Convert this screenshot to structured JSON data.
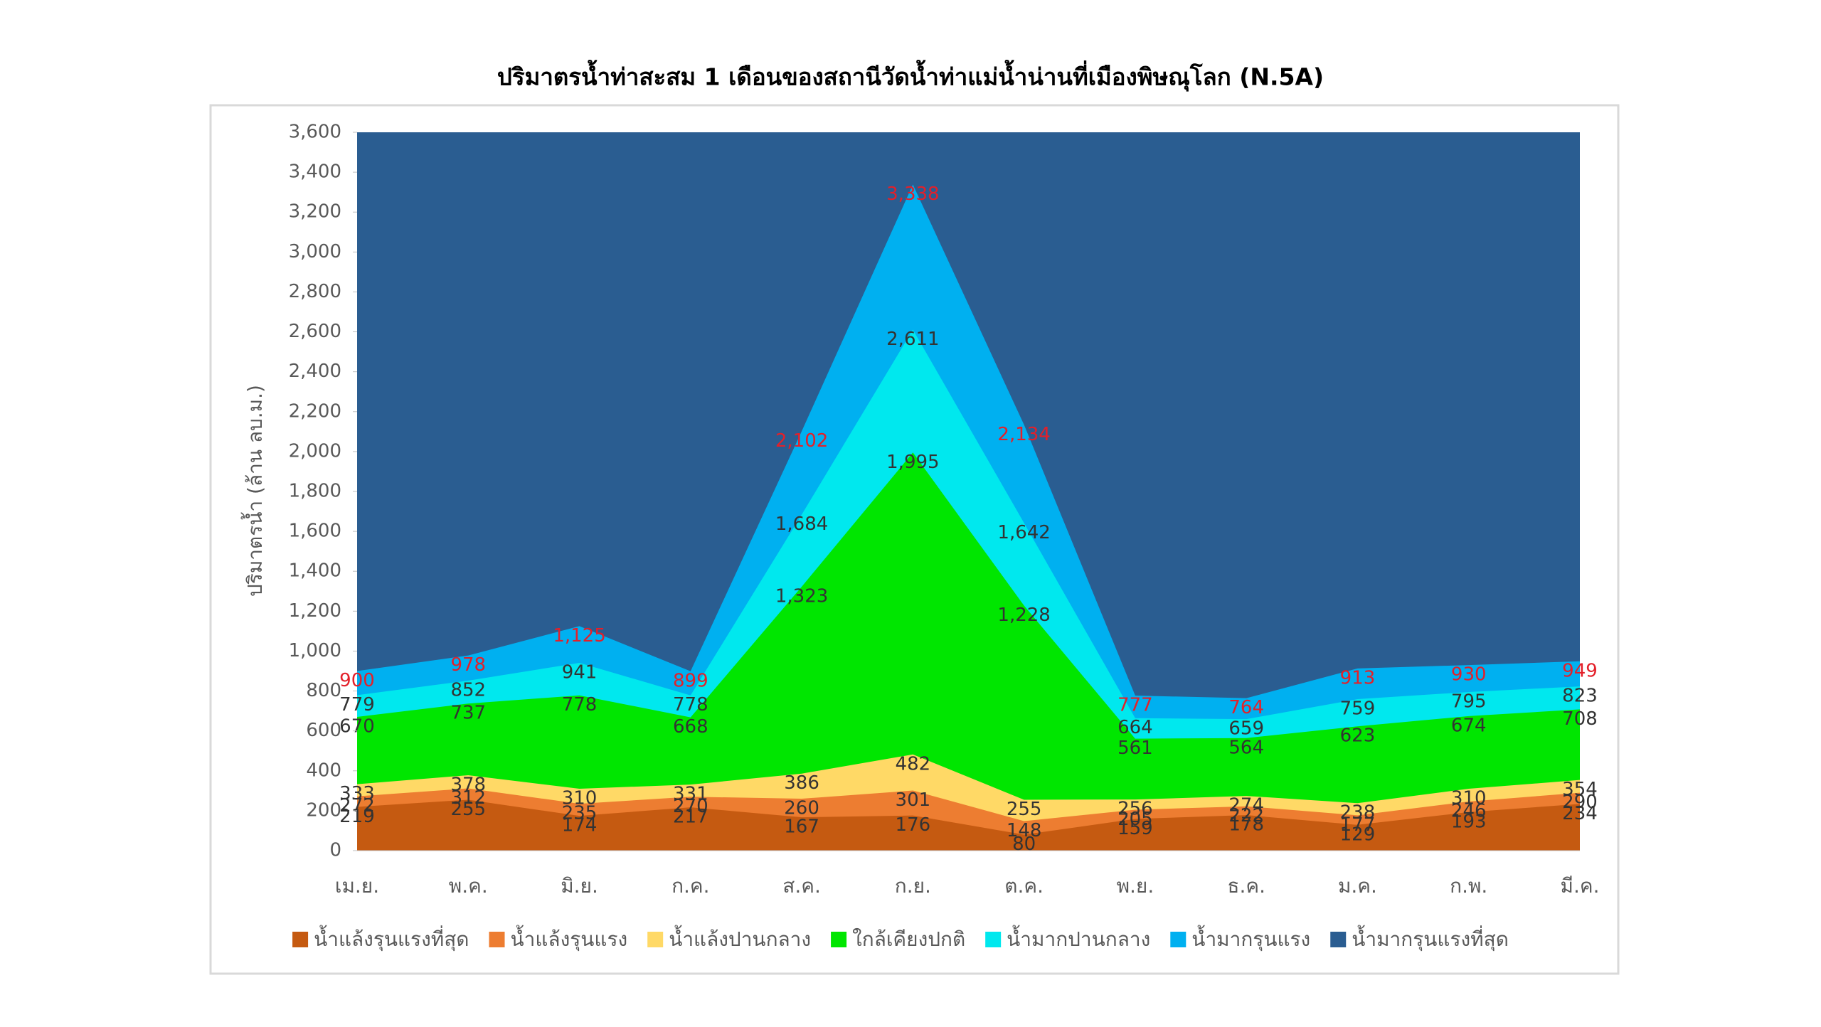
{
  "chart_data": {
    "type": "area",
    "stacking": "overlap",
    "title": "ปริมาตรน้ำท่าสะสม 1 เดือนของสถานีวัดน้ำท่าแม่น้ำน่านที่เมืองพิษณุโลก (N.5A)",
    "y_label": "ปริมาตรน้ำ (ล้าน ลบ.ม.)",
    "categories": [
      "เม.ย.",
      "พ.ค.",
      "มิ.ย.",
      "ก.ค.",
      "ส.ค.",
      "ก.ย.",
      "ต.ค.",
      "พ.ย.",
      "ธ.ค.",
      "ม.ค.",
      "ก.พ.",
      "มี.ค."
    ],
    "ylim": [
      0,
      3600
    ],
    "yticks": [
      0,
      200,
      400,
      600,
      800,
      {
        "value": 1000,
        "label": "1,000"
      },
      {
        "value": 1200,
        "label": "1,200"
      },
      {
        "value": 1400,
        "label": "1,400"
      },
      {
        "value": 1600,
        "label": "1,600"
      },
      {
        "value": 1800,
        "label": "1,800"
      },
      {
        "value": 2000,
        "label": "2,000"
      },
      {
        "value": 2200,
        "label": "2,200"
      },
      {
        "value": 2400,
        "label": "2,400"
      },
      {
        "value": 2600,
        "label": "2,600"
      },
      {
        "value": 2800,
        "label": "2,800"
      },
      {
        "value": 3000,
        "label": "3,000"
      },
      {
        "value": 3200,
        "label": "3,200"
      },
      {
        "value": 3400,
        "label": "3,400"
      },
      {
        "value": 3600,
        "label": "3,600"
      }
    ],
    "legend": "bottom",
    "series": [
      {
        "name": "น้ำแล้งรุนแรงที่สุด",
        "color": "#c55a11",
        "label_color": "#333333",
        "values": [
          219,
          255,
          174,
          217,
          167,
          176,
          80,
          159,
          178,
          129,
          193,
          234
        ]
      },
      {
        "name": "น้ำแล้งรุนแรง",
        "color": "#ed7d31",
        "label_color": "#333333",
        "values": [
          272,
          312,
          235,
          270,
          260,
          301,
          148,
          205,
          222,
          177,
          246,
          290
        ]
      },
      {
        "name": "น้ำแล้งปานกลาง",
        "color": "#ffd966",
        "label_color": "#333333",
        "values": [
          333,
          378,
          310,
          331,
          386,
          482,
          255,
          256,
          274,
          238,
          310,
          354
        ]
      },
      {
        "name": "ใกล้เคียงปกติ",
        "color": "#00e600",
        "label_color": "#333333",
        "values": [
          670,
          737,
          778,
          668,
          1323,
          1995,
          1228,
          561,
          564,
          623,
          674,
          708
        ],
        "value_labels": [
          "670",
          "737",
          "778",
          "668",
          "1,323",
          "1,995",
          "1,228",
          "561",
          "564",
          "623",
          "674",
          "708"
        ]
      },
      {
        "name": "น้ำมากปานกลาง",
        "color": "#00e8ee",
        "label_color": "#333333",
        "values": [
          779,
          852,
          941,
          778,
          1684,
          2611,
          1642,
          664,
          659,
          759,
          795,
          823
        ],
        "value_labels": [
          "779",
          "852",
          "941",
          "778",
          "1,684",
          "2,611",
          "1,642",
          "664",
          "659",
          "759",
          "795",
          "823"
        ]
      },
      {
        "name": "น้ำมากรุนแรง",
        "color": "#00b0f0",
        "label_color": "#e3202a",
        "values": [
          900,
          978,
          1125,
          899,
          2102,
          3338,
          2134,
          777,
          764,
          913,
          930,
          949
        ],
        "value_labels": [
          "900",
          "978",
          "1,125",
          "899",
          "2,102",
          "3,338",
          "2,134",
          "777",
          "764",
          "913",
          "930",
          "949"
        ]
      },
      {
        "name": "น้ำมากรุนแรงที่สุด",
        "color": "#2a5d91",
        "values": [
          3600,
          3600,
          3600,
          3600,
          3600,
          3600,
          3600,
          3600,
          3600,
          3600,
          3600,
          3600
        ]
      }
    ]
  }
}
